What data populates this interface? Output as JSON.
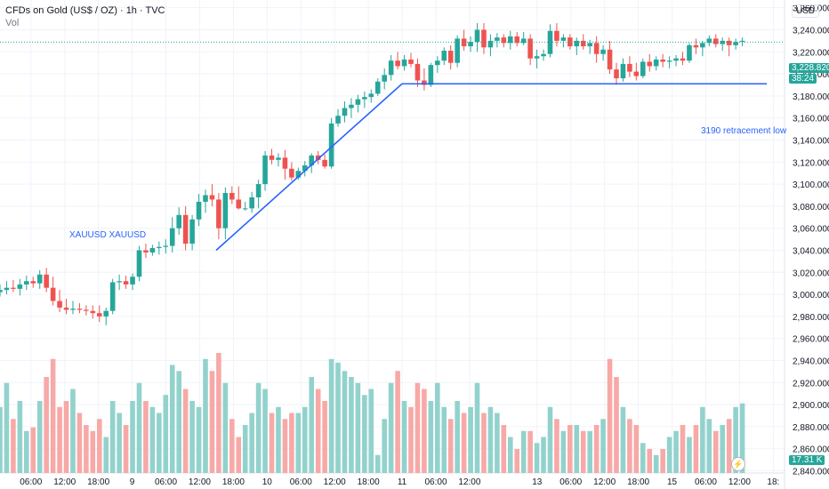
{
  "header": {
    "title": "CFDs on Gold (US$ / OZ) · 1h · TVC",
    "sub": "Vol"
  },
  "currency": "USD",
  "badges": {
    "price": "3,228.820",
    "countdown": "38:24",
    "volume": "17.31 K"
  },
  "annotations": {
    "symbol_text": "XAUUSD  XAUUSD",
    "retracement": "3190 retracement low"
  },
  "colors": {
    "up": "#26a69a",
    "down": "#ef5350",
    "vol_up": "#92d2cc",
    "vol_down": "#f7a9a7",
    "line": "#2962ff",
    "grid": "#f0f3fa",
    "axis_text": "#131722"
  },
  "icons": [
    "lightning-alert-icon"
  ],
  "chart_data": {
    "type": "candlestick",
    "instrument": "XAUUSD",
    "y_ticks": [
      2840,
      2860,
      2880,
      2900,
      2920,
      2940,
      2960,
      2980,
      3000,
      3020,
      3040,
      3060,
      3080,
      3100,
      3120,
      3140,
      3160,
      3180,
      3200,
      3220,
      3240,
      3260
    ],
    "ylim": [
      2838,
      3267
    ],
    "x_ticks": [
      "06:00",
      "12:00",
      "18:00",
      "9",
      "06:00",
      "12:00",
      "18:00",
      "10",
      "06:00",
      "12:00",
      "18:00",
      "11",
      "06:00",
      "12:00",
      "13",
      "06:00",
      "12:00",
      "18:00",
      "15",
      "06:00",
      "12:00",
      "18:"
    ],
    "x_tick_hours": [
      0,
      6,
      12,
      18,
      24,
      30,
      36,
      42,
      48,
      54,
      60,
      66,
      72,
      78,
      90,
      96,
      102,
      108,
      114,
      120,
      126,
      132
    ],
    "hours_visible": [
      -5.5,
      134
    ],
    "candles_ohlc": [
      [
        3002,
        3009,
        2998,
        3004
      ],
      [
        3004,
        3012,
        3000,
        3006
      ],
      [
        3006,
        3013,
        3002,
        3005
      ],
      [
        3005,
        3014,
        2999,
        3009
      ],
      [
        3009,
        3017,
        3004,
        3012
      ],
      [
        3012,
        3016,
        3006,
        3010
      ],
      [
        3010,
        3022,
        3005,
        3018
      ],
      [
        3018,
        3024,
        3002,
        3006
      ],
      [
        3006,
        3016,
        2990,
        2994
      ],
      [
        2994,
        3004,
        2984,
        2988
      ],
      [
        2988,
        2996,
        2982,
        2986
      ],
      [
        2986,
        2994,
        2982,
        2987
      ],
      [
        2987,
        2992,
        2983,
        2986
      ],
      [
        2986,
        2990,
        2981,
        2985
      ],
      [
        2985,
        2990,
        2978,
        2983
      ],
      [
        2983,
        2990,
        2975,
        2980
      ],
      [
        2980,
        2988,
        2972,
        2985
      ],
      [
        2985,
        3014,
        2982,
        3011
      ],
      [
        3011,
        3018,
        3004,
        3012
      ],
      [
        3012,
        3017,
        3005,
        3009
      ],
      [
        3009,
        3019,
        3004,
        3016
      ],
      [
        3016,
        3044,
        3012,
        3040
      ],
      [
        3040,
        3046,
        3033,
        3038
      ],
      [
        3038,
        3045,
        3035,
        3042
      ],
      [
        3042,
        3048,
        3036,
        3043
      ],
      [
        3043,
        3050,
        3037,
        3044
      ],
      [
        3044,
        3070,
        3038,
        3060
      ],
      [
        3060,
        3079,
        3054,
        3072
      ],
      [
        3072,
        3080,
        3040,
        3046
      ],
      [
        3046,
        3072,
        3040,
        3068
      ],
      [
        3068,
        3091,
        3062,
        3084
      ],
      [
        3084,
        3095,
        3074,
        3090
      ],
      [
        3090,
        3100,
        3080,
        3086
      ],
      [
        3086,
        3092,
        3050,
        3060
      ],
      [
        3060,
        3097,
        3050,
        3092
      ],
      [
        3092,
        3098,
        3082,
        3086
      ],
      [
        3086,
        3098,
        3077,
        3078
      ],
      [
        3078,
        3084,
        3076,
        3078
      ],
      [
        3078,
        3093,
        3074,
        3088
      ],
      [
        3088,
        3104,
        3078,
        3100
      ],
      [
        3100,
        3130,
        3094,
        3126
      ],
      [
        3126,
        3132,
        3118,
        3122
      ],
      [
        3122,
        3128,
        3116,
        3124
      ],
      [
        3124,
        3131,
        3104,
        3114
      ],
      [
        3114,
        3120,
        3103,
        3106
      ],
      [
        3106,
        3115,
        3104,
        3112
      ],
      [
        3112,
        3121,
        3107,
        3117
      ],
      [
        3117,
        3128,
        3110,
        3126
      ],
      [
        3126,
        3130,
        3118,
        3122
      ],
      [
        3122,
        3127,
        3114,
        3116
      ],
      [
        3116,
        3160,
        3114,
        3155
      ],
      [
        3155,
        3168,
        3152,
        3162
      ],
      [
        3162,
        3175,
        3156,
        3169
      ],
      [
        3169,
        3178,
        3160,
        3172
      ],
      [
        3172,
        3181,
        3165,
        3177
      ],
      [
        3177,
        3184,
        3169,
        3179
      ],
      [
        3179,
        3186,
        3174,
        3182
      ],
      [
        3182,
        3196,
        3180,
        3193
      ],
      [
        3193,
        3205,
        3186,
        3199
      ],
      [
        3199,
        3217,
        3194,
        3212
      ],
      [
        3212,
        3220,
        3204,
        3207
      ],
      [
        3207,
        3217,
        3203,
        3213
      ],
      [
        3213,
        3219,
        3206,
        3209
      ],
      [
        3209,
        3214,
        3188,
        3194
      ],
      [
        3194,
        3205,
        3185,
        3190
      ],
      [
        3190,
        3210,
        3188,
        3208
      ],
      [
        3208,
        3216,
        3201,
        3212
      ],
      [
        3212,
        3224,
        3208,
        3221
      ],
      [
        3221,
        3226,
        3204,
        3210
      ],
      [
        3210,
        3235,
        3206,
        3232
      ],
      [
        3232,
        3240,
        3221,
        3225
      ],
      [
        3225,
        3234,
        3220,
        3229
      ],
      [
        3229,
        3246,
        3220,
        3240
      ],
      [
        3240,
        3246,
        3218,
        3224
      ],
      [
        3224,
        3236,
        3216,
        3230
      ],
      [
        3230,
        3237,
        3224,
        3233
      ],
      [
        3233,
        3236,
        3224,
        3228
      ],
      [
        3228,
        3239,
        3222,
        3234
      ],
      [
        3234,
        3238,
        3225,
        3228
      ],
      [
        3228,
        3238,
        3226,
        3232
      ],
      [
        3232,
        3236,
        3208,
        3214
      ],
      [
        3214,
        3222,
        3205,
        3216
      ],
      [
        3216,
        3222,
        3212,
        3218
      ],
      [
        3218,
        3245,
        3215,
        3239
      ],
      [
        3239,
        3246,
        3225,
        3230
      ],
      [
        3230,
        3236,
        3224,
        3233
      ],
      [
        3233,
        3236,
        3222,
        3225
      ],
      [
        3225,
        3233,
        3217,
        3230
      ],
      [
        3230,
        3236,
        3222,
        3225
      ],
      [
        3225,
        3231,
        3218,
        3228
      ],
      [
        3228,
        3234,
        3210,
        3218
      ],
      [
        3218,
        3226,
        3212,
        3222
      ],
      [
        3222,
        3230,
        3200,
        3204
      ],
      [
        3204,
        3210,
        3190,
        3196
      ],
      [
        3196,
        3214,
        3193,
        3209
      ],
      [
        3209,
        3216,
        3197,
        3202
      ],
      [
        3202,
        3210,
        3194,
        3198
      ],
      [
        3198,
        3214,
        3196,
        3211
      ],
      [
        3211,
        3218,
        3202,
        3207
      ],
      [
        3207,
        3216,
        3203,
        3213
      ],
      [
        3213,
        3218,
        3206,
        3211
      ],
      [
        3211,
        3216,
        3205,
        3212
      ],
      [
        3212,
        3217,
        3207,
        3214
      ],
      [
        3214,
        3220,
        3208,
        3212
      ],
      [
        3212,
        3228,
        3210,
        3226
      ],
      [
        3226,
        3232,
        3218,
        3224
      ],
      [
        3224,
        3230,
        3216,
        3228
      ],
      [
        3228,
        3235,
        3225,
        3232
      ],
      [
        3232,
        3236,
        3224,
        3227
      ],
      [
        3227,
        3233,
        3221,
        3230
      ],
      [
        3230,
        3233,
        3216,
        3226
      ],
      [
        3226,
        3232,
        3222,
        3229
      ],
      [
        3229,
        3233,
        3225,
        3230
      ]
    ],
    "volume_relative": [
      0.55,
      0.75,
      0.45,
      0.6,
      0.35,
      0.38,
      0.6,
      0.8,
      0.95,
      0.55,
      0.6,
      0.7,
      0.5,
      0.4,
      0.35,
      0.45,
      0.3,
      0.6,
      0.5,
      0.4,
      0.6,
      0.75,
      0.6,
      0.55,
      0.5,
      0.65,
      0.9,
      0.85,
      0.7,
      0.6,
      0.55,
      0.95,
      0.85,
      1.0,
      0.75,
      0.45,
      0.3,
      0.4,
      0.5,
      0.75,
      0.7,
      0.5,
      0.55,
      0.45,
      0.5,
      0.5,
      0.55,
      0.8,
      0.7,
      0.6,
      0.95,
      0.92,
      0.85,
      0.8,
      0.75,
      0.65,
      0.7,
      0.15,
      0.45,
      0.75,
      0.85,
      0.6,
      0.55,
      0.75,
      0.7,
      0.6,
      0.75,
      0.55,
      0.45,
      0.6,
      0.5,
      0.55,
      0.75,
      0.5,
      0.55,
      0.5,
      0.4,
      0.3,
      0.2,
      0.35,
      0.35,
      0.25,
      0.3,
      0.55,
      0.45,
      0.35,
      0.4,
      0.4,
      0.35,
      0.35,
      0.4,
      0.45,
      0.95,
      0.8,
      0.55,
      0.45,
      0.4,
      0.25,
      0.2,
      0.15,
      0.2,
      0.3,
      0.35,
      0.4,
      0.3,
      0.4,
      0.55,
      0.45,
      0.35,
      0.4,
      0.45,
      0.55,
      0.58
    ]
  }
}
